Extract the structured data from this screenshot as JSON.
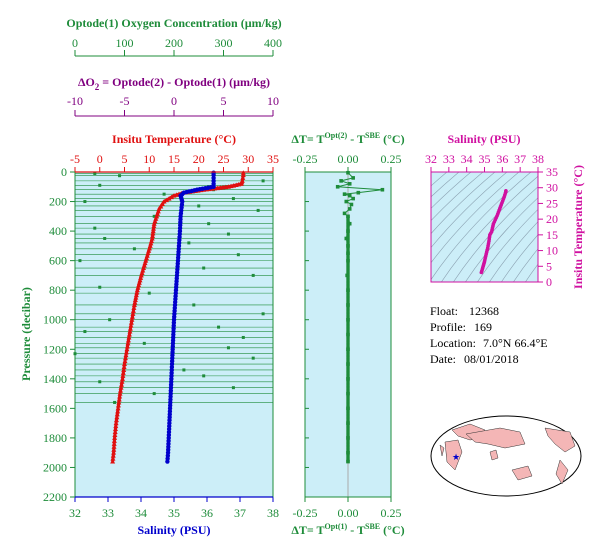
{
  "colors": {
    "oxygen": "#1e8c3a",
    "delta_o2": "#800080",
    "temperature": "#e01010",
    "salinity": "#0000cc",
    "pressure_axis": "#1e8c3a",
    "delta_t": "#1e8c3a",
    "ts_salinity": "#d010a0",
    "ts_temperature": "#d010a0",
    "panel_bg": "#cceef8",
    "land": "#f4b6b6"
  },
  "info": {
    "float_label": "Float:",
    "float": "12368",
    "profile_label": "Profile:",
    "profile": "169",
    "location_label": "Location:",
    "location": "7.0°N  66.4°E",
    "date_label": "Date:",
    "date": "08/01/2018"
  },
  "chart_data": [
    {
      "type": "line",
      "panel": "main-profile",
      "ylabel": "Pressure (decibar)",
      "ylim": [
        2200,
        0
      ],
      "yticks": [
        0,
        200,
        400,
        600,
        800,
        1000,
        1200,
        1400,
        1600,
        1800,
        2000,
        2200
      ],
      "axes": {
        "oxygen": {
          "label": "Optode(1) Oxygen Concentration (µm/kg)",
          "range": [
            0,
            400
          ],
          "ticks": [
            0,
            100,
            200,
            300,
            400
          ]
        },
        "delta_o2": {
          "label_parts": [
            "ΔO",
            "2",
            " = Optode(2) - Optode(1)   (µm/kg)"
          ],
          "range": [
            -10,
            10
          ],
          "ticks": [
            -10,
            -5,
            0,
            5,
            10
          ]
        },
        "temperature": {
          "label": "Insitu Temperature (°C)",
          "range": [
            -5,
            35
          ],
          "ticks": [
            -5,
            0,
            5,
            10,
            15,
            20,
            25,
            30,
            35
          ]
        },
        "salinity": {
          "label": "Salinity (PSU)",
          "range": [
            32,
            38
          ],
          "ticks": [
            32,
            33,
            34,
            35,
            36,
            37,
            38
          ]
        }
      },
      "series": [
        {
          "name": "Insitu Temperature",
          "axis": "temperature",
          "pressure": [
            5,
            20,
            40,
            60,
            80,
            100,
            120,
            140,
            160,
            200,
            250,
            300,
            350,
            400,
            450,
            500,
            600,
            700,
            800,
            900,
            1000,
            1100,
            1200,
            1300,
            1400,
            1500,
            1600,
            1700,
            1800,
            1900,
            1960
          ],
          "values": [
            29.0,
            29.0,
            28.9,
            28.8,
            28.6,
            26.0,
            21.0,
            17.0,
            15.0,
            13.0,
            12.0,
            11.5,
            11.0,
            10.8,
            10.6,
            10.2,
            9.3,
            8.4,
            7.6,
            7.0,
            6.5,
            6.0,
            5.5,
            5.0,
            4.6,
            4.1,
            3.7,
            3.3,
            3.0,
            2.8,
            2.6
          ]
        },
        {
          "name": "Salinity",
          "axis": "salinity",
          "pressure": [
            5,
            20,
            40,
            60,
            80,
            100,
            120,
            140,
            160,
            200,
            300,
            400,
            500,
            600,
            700,
            800,
            900,
            1000,
            1100,
            1200,
            1300,
            1400,
            1500,
            1600,
            1700,
            1800,
            1900,
            1960
          ],
          "values": [
            36.2,
            36.2,
            36.2,
            36.2,
            36.2,
            36.2,
            35.7,
            35.3,
            35.2,
            35.25,
            35.2,
            35.18,
            35.15,
            35.12,
            35.09,
            35.06,
            35.03,
            35.0,
            34.98,
            34.96,
            34.94,
            34.92,
            34.9,
            34.88,
            34.86,
            34.84,
            34.82,
            34.8
          ]
        },
        {
          "name": "ΔO2",
          "axis": "delta_o2",
          "pressure": [
            10,
            25,
            60,
            90,
            120,
            150,
            180,
            200,
            230,
            260,
            300,
            350,
            380,
            420,
            450,
            480,
            520,
            560,
            600,
            650,
            700,
            780,
            820,
            900,
            960,
            1000,
            1050,
            1080,
            1120,
            1160,
            1190,
            1230,
            1260,
            1300,
            1340,
            1380,
            1420,
            1460,
            1500,
            1560
          ],
          "values": [
            -8.0,
            -5.5,
            9.0,
            -7.5,
            4.0,
            -1.0,
            6.0,
            -9.0,
            2.5,
            8.5,
            -2.0,
            3.5,
            -8.0,
            5.5,
            -7.0,
            1.5,
            -4.0,
            6.5,
            -9.5,
            3.0,
            8.0,
            -7.5,
            -2.5,
            2.0,
            9.0,
            -6.5,
            4.5,
            -9.0,
            7.0,
            -3.0,
            5.5,
            -10.0,
            8.0,
            -5.0,
            1.0,
            3.0,
            -7.5,
            6.0,
            -2.0,
            -6.0
          ]
        }
      ]
    },
    {
      "type": "scatter",
      "panel": "delta-t",
      "title_parts": [
        "ΔT= T",
        "Opt(2)",
        " - T",
        "SBE",
        " (°C)"
      ],
      "xlabel_parts": [
        "ΔT= T",
        "Opt(1)",
        " - T",
        "SBE",
        " (°C)"
      ],
      "xlim": [
        -0.25,
        0.25
      ],
      "xticks": [
        -0.25,
        0.0,
        0.25
      ],
      "xtick_labels": [
        "-0.25",
        "0.00",
        "0.25"
      ],
      "ylim": [
        2200,
        0
      ],
      "series": [
        {
          "name": "ΔT",
          "pressure": [
            5,
            40,
            60,
            80,
            100,
            120,
            140,
            150,
            160,
            180,
            200,
            220,
            250,
            280,
            300,
            350,
            400,
            450,
            500,
            550,
            600,
            700,
            800,
            900,
            1000,
            1100,
            1200,
            1300,
            1400,
            1500,
            1600,
            1700,
            1800,
            1900,
            1960
          ],
          "values": [
            0.0,
            0.03,
            -0.04,
            0.01,
            -0.06,
            0.2,
            0.06,
            -0.02,
            0.01,
            0.03,
            -0.01,
            0.02,
            0.01,
            -0.02,
            0.0,
            0.01,
            0.0,
            -0.01,
            0.0,
            0.0,
            0.0,
            -0.005,
            0.0,
            0.0,
            0.0,
            0.0,
            0.0,
            0.0,
            0.0,
            0.0,
            0.0,
            0.0,
            0.0,
            0.0,
            0.0
          ]
        }
      ]
    },
    {
      "type": "scatter",
      "panel": "ts-diagram",
      "xlabel": "Salinity (PSU)",
      "ylabel": "Insitu Temperature (°C)",
      "xlim": [
        32,
        38
      ],
      "ylim": [
        0,
        35
      ],
      "xticks": [
        32,
        33,
        34,
        35,
        36,
        37,
        38
      ],
      "yticks": [
        0,
        5,
        10,
        15,
        20,
        25,
        30,
        35
      ],
      "series": [
        {
          "name": "T-S",
          "salinity": [
            36.2,
            36.2,
            36.1,
            35.9,
            35.7,
            35.5,
            35.4,
            35.3,
            35.25,
            35.2,
            35.18,
            35.15,
            35.1,
            35.05,
            35.0,
            34.95,
            34.9,
            34.85,
            34.8
          ],
          "temperature": [
            29.0,
            28.8,
            27.0,
            24.0,
            21.0,
            18.5,
            16.0,
            15.0,
            13.0,
            11.5,
            10.8,
            10.2,
            9.0,
            7.8,
            6.5,
            5.5,
            4.5,
            3.5,
            2.6
          ]
        }
      ]
    }
  ]
}
